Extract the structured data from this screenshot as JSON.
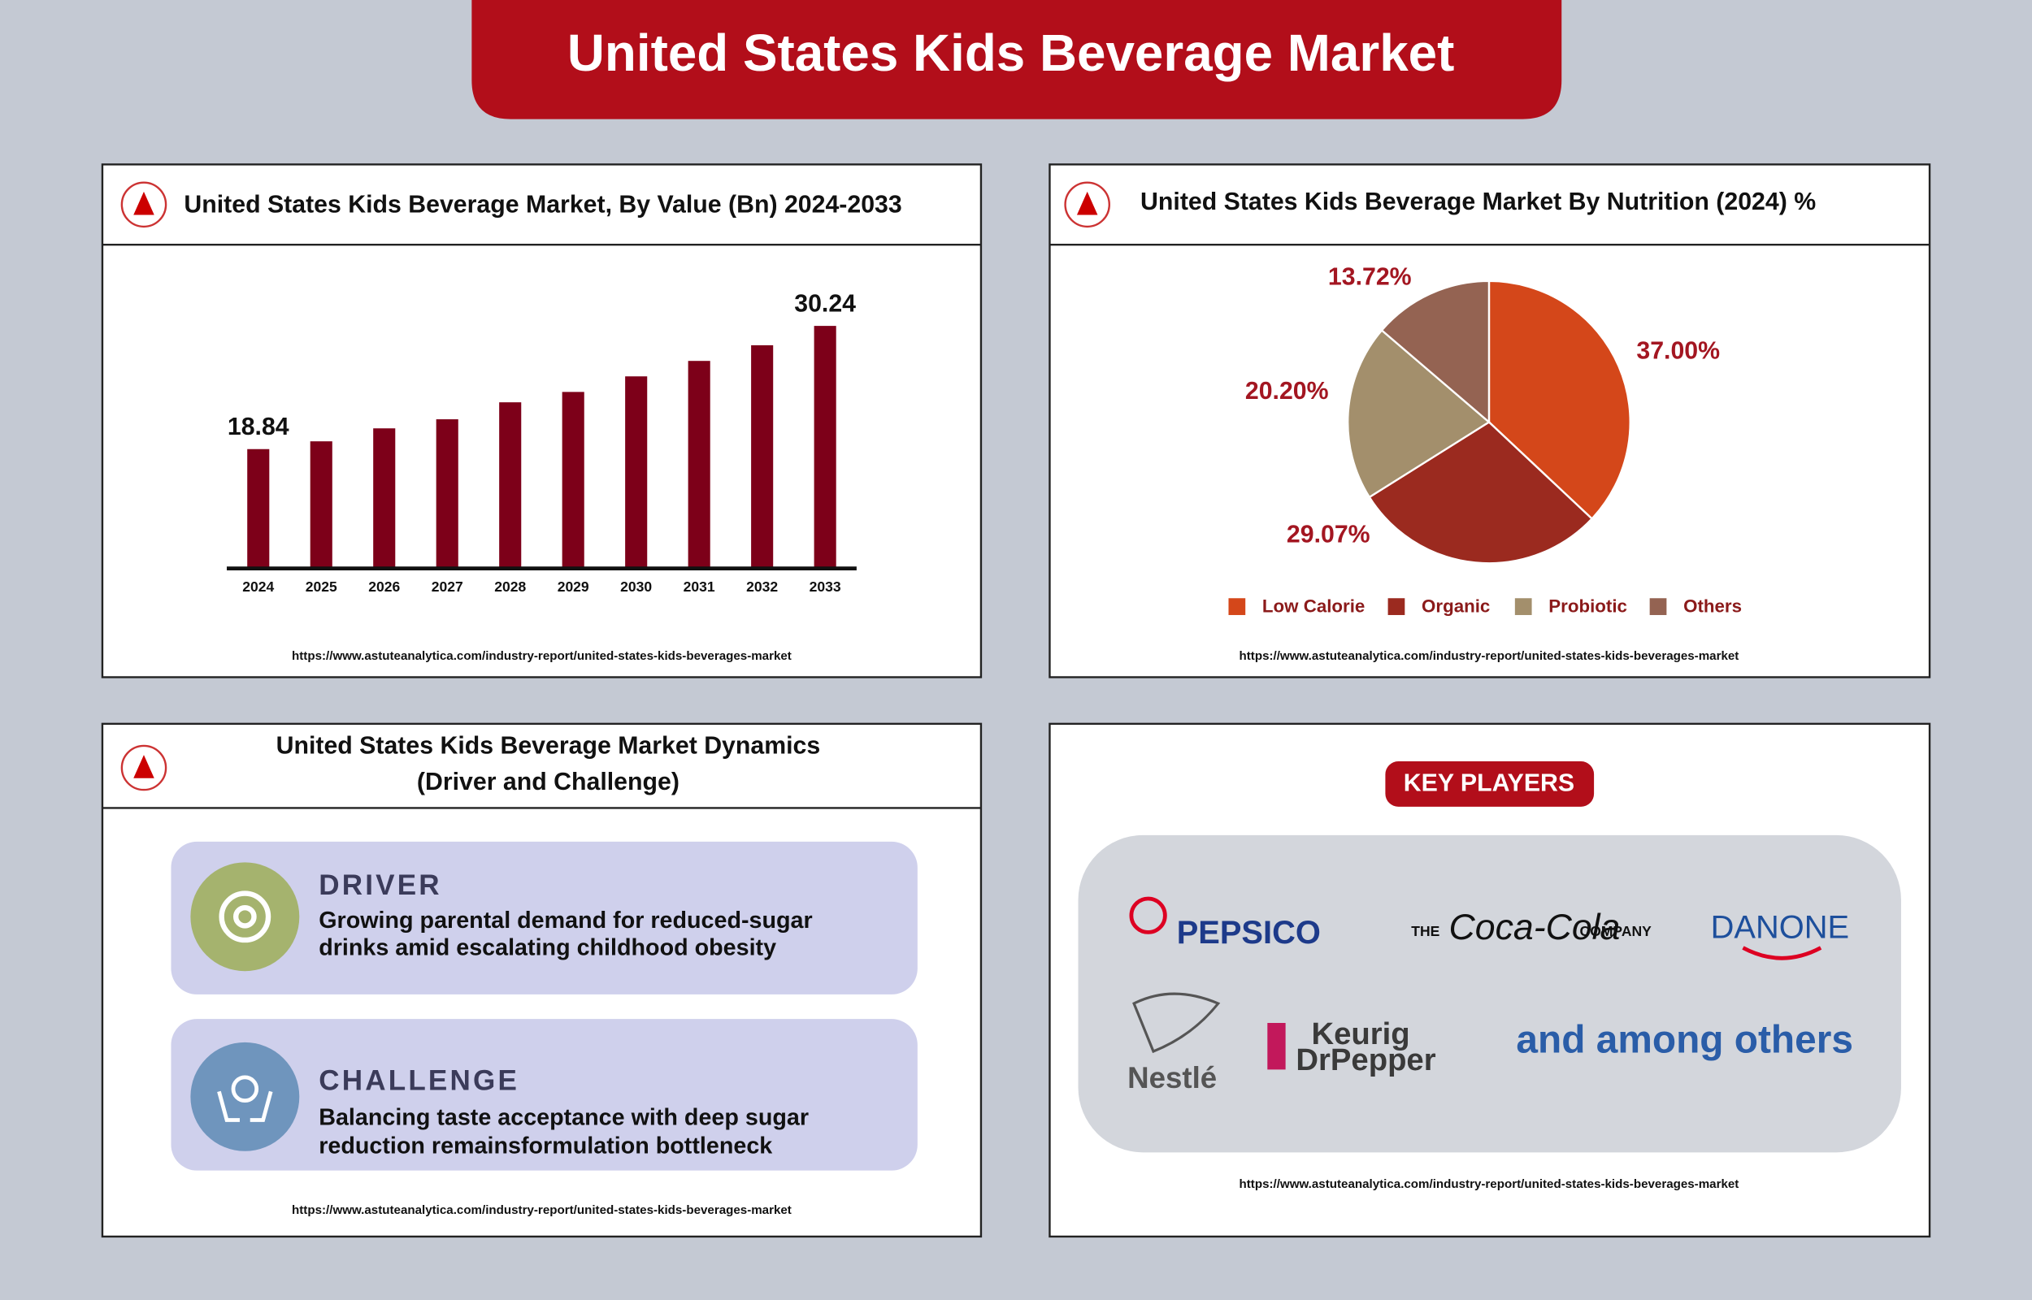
{
  "title": "United States Kids Beverage Market",
  "chart_data": [
    {
      "type": "bar",
      "title": "United States Kids Beverage Market, By Value (Bn) 2024-2033",
      "categories": [
        "2024",
        "2025",
        "2026",
        "2027",
        "2028",
        "2029",
        "2030",
        "2031",
        "2032",
        "2033"
      ],
      "values": [
        18.84,
        19.56,
        20.76,
        21.6,
        23.17,
        24.13,
        25.57,
        27.0,
        28.45,
        30.24
      ],
      "value_labels": [
        "18.84",
        null,
        null,
        null,
        null,
        null,
        null,
        null,
        null,
        "30.24"
      ],
      "color": "#7d0019",
      "ylim": [
        7.8,
        32
      ],
      "source": "https://www.astuteanalytica.com/industry-report/united-states-kids-beverages-market"
    },
    {
      "type": "pie",
      "title": "United States Kids Beverage Market By Nutrition (2024) %",
      "categories": [
        "Low Calorie",
        "Organic",
        "Probiotic",
        "Others"
      ],
      "values": [
        37.0,
        29.07,
        20.2,
        13.72
      ],
      "value_labels": [
        "37.00%",
        "29.07%",
        "20.20%",
        "13.72%"
      ],
      "colors": [
        "#d4471a",
        "#9b2a1f",
        "#a38f6c",
        "#946352"
      ],
      "source": "https://www.astuteanalytica.com/industry-report/united-states-kids-beverages-market"
    }
  ],
  "dynamics": {
    "title": [
      "United States Kids Beverage Market Dynamics",
      "(Driver and Challenge)"
    ],
    "driver": {
      "label": "DRIVER",
      "text": [
        "Growing parental demand for reduced-sugar",
        "drinks amid escalating childhood obesity"
      ]
    },
    "challenge": {
      "label": "CHALLENGE",
      "text": [
        "Balancing taste acceptance with deep sugar",
        "reduction remainsformulation bottleneck"
      ]
    },
    "source": "https://www.astuteanalytica.com/industry-report/united-states-kids-beverages-market"
  },
  "key_players": {
    "title": "KEY PLAYERS",
    "logos": [
      "PEPSICO",
      "THE",
      "Coca-Cola",
      "COMPANY",
      "DANONE",
      "Nestlé",
      "Keurig",
      "DrPepper"
    ],
    "others": "and among others",
    "source": "https://www.astuteanalytica.com/industry-report/united-states-kids-beverages-market"
  }
}
